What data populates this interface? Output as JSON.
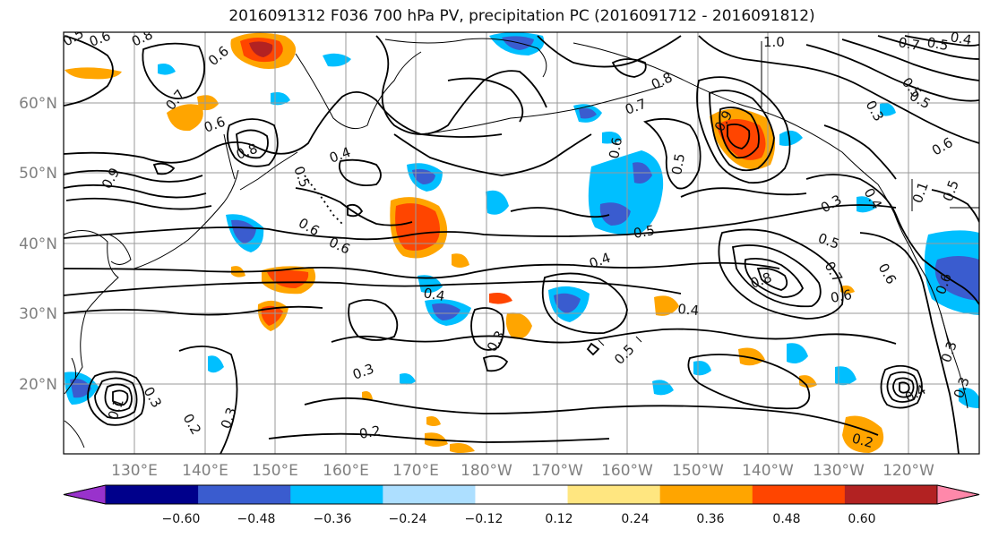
{
  "title": "2016091312 F036 700 hPa PV, precipitation PC (2016091712 - 2016091812)",
  "latitude_labels": [
    "60°N",
    "50°N",
    "40°N",
    "30°N",
    "20°N"
  ],
  "longitude_labels": [
    "130°E",
    "140°E",
    "150°E",
    "160°E",
    "170°E",
    "180°W",
    "170°W",
    "160°W",
    "150°W",
    "140°W",
    "130°W",
    "120°W"
  ],
  "colorbar": {
    "tick_labels": [
      "−0.60",
      "−0.48",
      "−0.36",
      "−0.24",
      "−0.12",
      "0.12",
      "0.24",
      "0.36",
      "0.48",
      "0.60"
    ],
    "colors": [
      "#9932CC",
      "#00008B",
      "#3A5CCF",
      "#00BFFF",
      "#ADDFFF",
      "#FFFFFF",
      "#FFE680",
      "#FFA500",
      "#FF4500",
      "#B22222",
      "#FF88AA"
    ]
  },
  "contour_labels": [
    "0.5",
    "0.6",
    "0.8",
    "0.7",
    "0.6",
    "0.8",
    "0.6",
    "0.5",
    "0.4",
    "0.6",
    "0.6",
    "0.9",
    "0.5",
    "0.4",
    "0.4",
    "0.3",
    "0.3",
    "0.5",
    "0.4",
    "0.2",
    "0.2",
    "0.3",
    "0.3",
    "0.1",
    "0.7",
    "0.6",
    "0.5",
    "0.9",
    "0.8",
    "1.0",
    "0.7",
    "0.5",
    "0.4",
    "0.5",
    "0.3",
    "0.5",
    "0.8",
    "0.6",
    "0.7",
    "0.6",
    "0.3",
    "0.2",
    "0.4",
    "0.3",
    "0.6",
    "0.4",
    "0.1",
    "0.6",
    "0.5",
    "0.5",
    "0.3"
  ]
}
